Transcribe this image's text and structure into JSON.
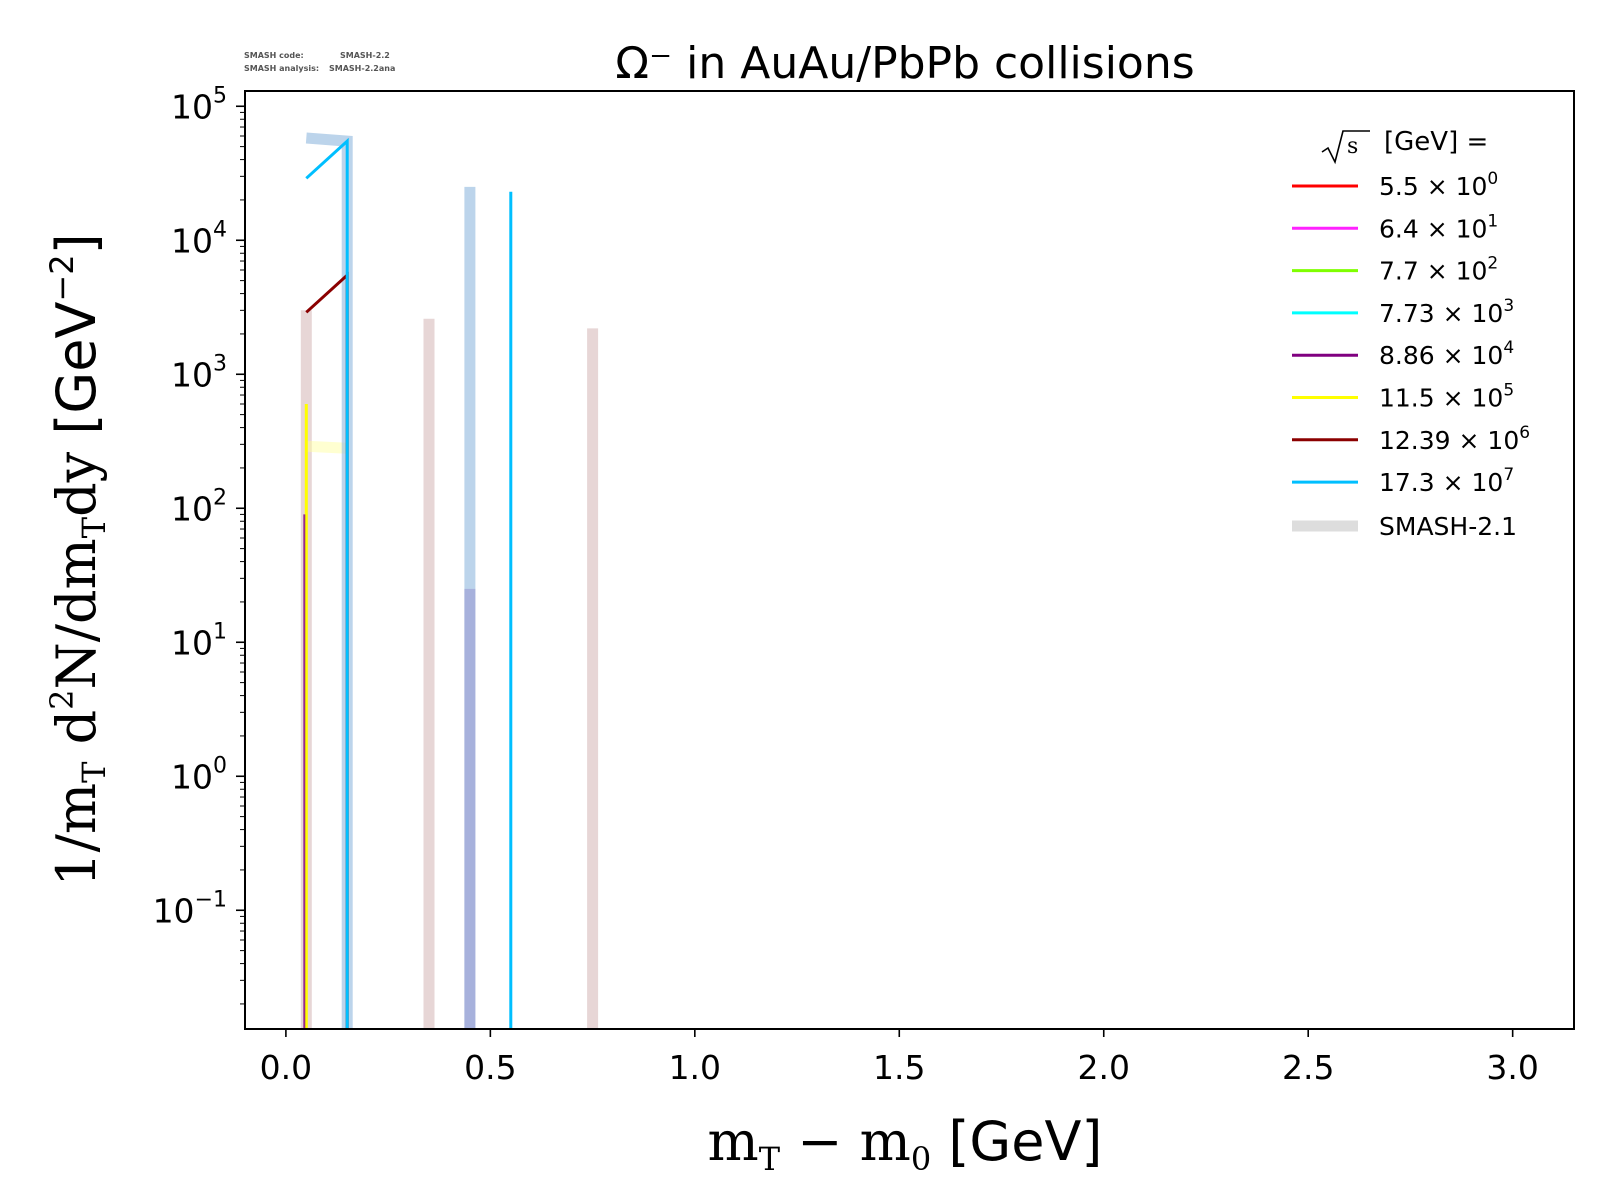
{
  "chart_data": {
    "type": "line",
    "title": "Ω⁻ in AuAu/PbPb collisions",
    "watermark": {
      "line1_label": "SMASH code:",
      "line1_value": "SMASH-2.2",
      "line2_label": "SMASH analysis:",
      "line2_value": "SMASH-2.2ana"
    },
    "xlabel": {
      "main": "m",
      "sub1": "T",
      "mid": " − m",
      "sub2": "0",
      "unit": " [GeV]"
    },
    "ylabel": {
      "p1": "1/m",
      "sub1": "T",
      "p2": " d",
      "sup": "2",
      "p3": "N/dm",
      "sub2": "T",
      "p4": "dy ",
      "unit": "[GeV",
      "unit_sup": "−2",
      "unit_end": "]"
    },
    "x_scale": "linear",
    "y_scale": "log",
    "xlim": [
      -0.1,
      3.15
    ],
    "ylim": [
      0.013,
      130000
    ],
    "x_ticks": [
      "0.0",
      "0.5",
      "1.0",
      "1.5",
      "2.0",
      "2.5",
      "3.0"
    ],
    "x_tick_values": [
      0.0,
      0.5,
      1.0,
      1.5,
      2.0,
      2.5,
      3.0
    ],
    "y_ticks": [
      {
        "value": 0.1,
        "base": "10",
        "exp": "−1"
      },
      {
        "value": 1,
        "base": "10",
        "exp": "0"
      },
      {
        "value": 10,
        "base": "10",
        "exp": "1"
      },
      {
        "value": 100,
        "base": "10",
        "exp": "2"
      },
      {
        "value": 1000,
        "base": "10",
        "exp": "3"
      },
      {
        "value": 10000,
        "base": "10",
        "exp": "4"
      },
      {
        "value": 100000,
        "base": "10",
        "exp": "5"
      }
    ],
    "grid": false,
    "legend": {
      "placement": "top-right",
      "header": "[GeV] =",
      "header_symbol": "√s",
      "entries": [
        {
          "mant": "5.5",
          "exp": "0",
          "color": "#ff0000"
        },
        {
          "mant": "6.4",
          "exp": "1",
          "color": "#ff22ff"
        },
        {
          "mant": "7.7",
          "exp": "2",
          "color": "#7fff00"
        },
        {
          "mant": "7.73",
          "exp": "3",
          "color": "#00ffff"
        },
        {
          "mant": "8.86",
          "exp": "4",
          "color": "#800080"
        },
        {
          "mant": "11.5",
          "exp": "5",
          "color": "#ffff00"
        },
        {
          "mant": "12.39",
          "exp": "6",
          "color": "#8b0000"
        },
        {
          "mant": "17.3",
          "exp": "7",
          "color": "#00bfff"
        }
      ],
      "ref_label": "SMASH-2.1",
      "ref_color": "#d3d3d3"
    },
    "series": [
      {
        "color": "#8b0000",
        "width": 3,
        "opacity": 1,
        "points": [
          [
            0.05,
            2900
          ],
          [
            0.15,
            5500
          ],
          [
            0.15,
            0.013
          ]
        ]
      },
      {
        "color": "#ffff00",
        "width": 3,
        "opacity": 1,
        "points": [
          [
            0.05,
            600
          ],
          [
            0.05,
            0.013
          ]
        ]
      },
      {
        "color": "#800080",
        "width": 2,
        "opacity": 0.8,
        "points": [
          [
            0.045,
            90
          ],
          [
            0.045,
            0.013
          ]
        ]
      },
      {
        "color": "#00bfff",
        "width": 3,
        "opacity": 1,
        "points": [
          [
            0.05,
            29000
          ],
          [
            0.15,
            55000
          ],
          [
            0.15,
            0.013
          ]
        ]
      },
      {
        "color": "#00bfff",
        "width": 3,
        "opacity": 1,
        "points": [
          [
            0.55,
            23000
          ],
          [
            0.55,
            0.013
          ]
        ]
      }
    ],
    "reference": [
      {
        "color": "#c9a3a3",
        "width": 11,
        "opacity": 0.45,
        "points": [
          [
            0.05,
            3000
          ],
          [
            0.05,
            0.013
          ]
        ]
      },
      {
        "color": "#c9a3a3",
        "width": 11,
        "opacity": 0.45,
        "points": [
          [
            0.35,
            2600
          ],
          [
            0.35,
            0.013
          ]
        ]
      },
      {
        "color": "#c9a3a3",
        "width": 11,
        "opacity": 0.45,
        "points": [
          [
            0.75,
            2200
          ],
          [
            0.75,
            0.013
          ]
        ]
      },
      {
        "color": "#ffff99",
        "width": 11,
        "opacity": 0.45,
        "points": [
          [
            0.05,
            290
          ],
          [
            0.15,
            280
          ]
        ]
      },
      {
        "color": "#8fb8de",
        "width": 11,
        "opacity": 0.6,
        "points": [
          [
            0.05,
            58000
          ],
          [
            0.15,
            55000
          ],
          [
            0.15,
            0.013
          ]
        ]
      },
      {
        "color": "#8fb8de",
        "width": 11,
        "opacity": 0.6,
        "points": [
          [
            0.45,
            25000
          ],
          [
            0.45,
            0.013
          ]
        ]
      },
      {
        "color": "#9a9ad2",
        "width": 11,
        "opacity": 0.6,
        "points": [
          [
            0.45,
            25
          ],
          [
            0.45,
            0.013
          ]
        ]
      }
    ]
  }
}
